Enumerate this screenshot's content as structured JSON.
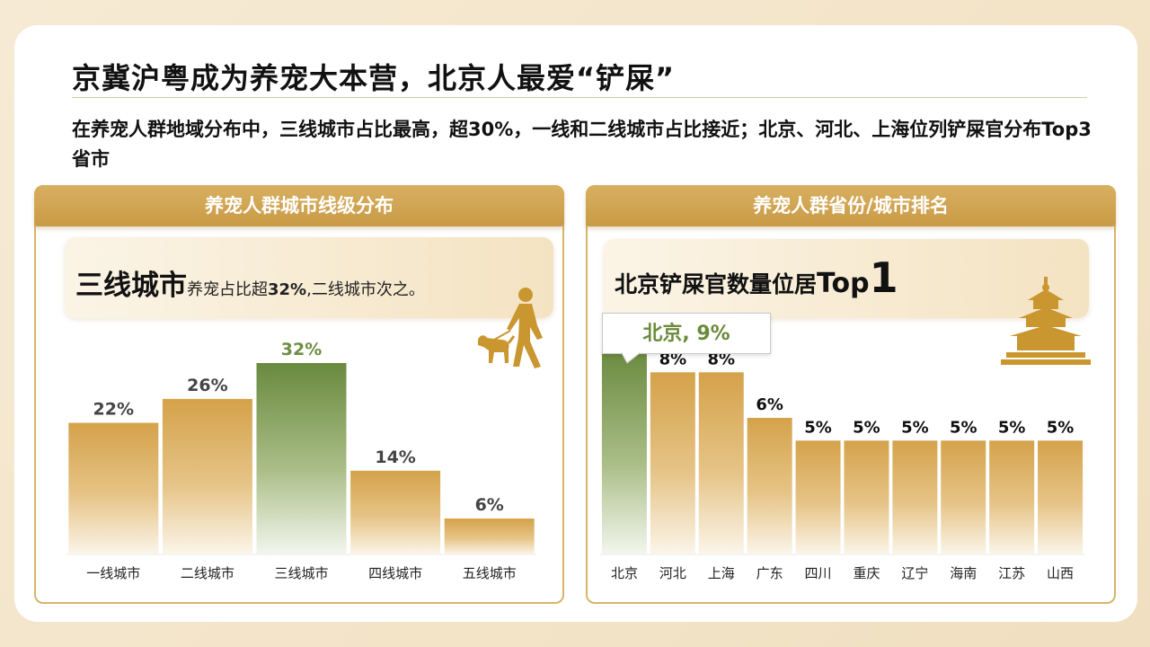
{
  "title": "京冀沪粤成为养宠大本营，北京人最爱“铲屎”",
  "subtitle": "在养宠人群地域分布中，三线城市占比最高，超30%，一线和二线城市占比接近；北京、河北、上海位列铲屎官分布Top3省市",
  "left_panel": {
    "header": "养宠人群城市线级分布",
    "callout_big": "三线城市",
    "callout_small_pre": "养宠占比超",
    "callout_small_bold": "32%",
    "callout_small_post": ",二线城市次之。",
    "icon": "dog-walker-icon"
  },
  "right_panel": {
    "header": "养宠人群省份/城市排名",
    "callout_text": "北京铲屎官数量位居",
    "callout_top": "Top",
    "callout_top_num": "1",
    "bubble": "北京, 9%",
    "icon": "temple-of-heaven-icon"
  },
  "colors": {
    "gold": "#d4a650",
    "green": "#6e8c43",
    "text": "#111111"
  },
  "chart_data": [
    {
      "type": "bar",
      "categories": [
        "一线城市",
        "二线城市",
        "三线城市",
        "四线城市",
        "五线城市"
      ],
      "values": [
        22,
        26,
        32,
        14,
        6
      ],
      "labels": [
        "22%",
        "26%",
        "32%",
        "14%",
        "6%"
      ],
      "highlight_index": 2,
      "unit": "%"
    },
    {
      "type": "bar",
      "categories": [
        "北京",
        "河北",
        "上海",
        "广东",
        "四川",
        "重庆",
        "辽宁",
        "海南",
        "江苏",
        "山西"
      ],
      "values": [
        9,
        8,
        8,
        6,
        5,
        5,
        5,
        5,
        5,
        5
      ],
      "labels": [
        "北京, 9%",
        "8%",
        "8%",
        "6%",
        "5%",
        "5%",
        "5%",
        "5%",
        "5%",
        "5%"
      ],
      "highlight_index": 0,
      "unit": "%"
    }
  ]
}
